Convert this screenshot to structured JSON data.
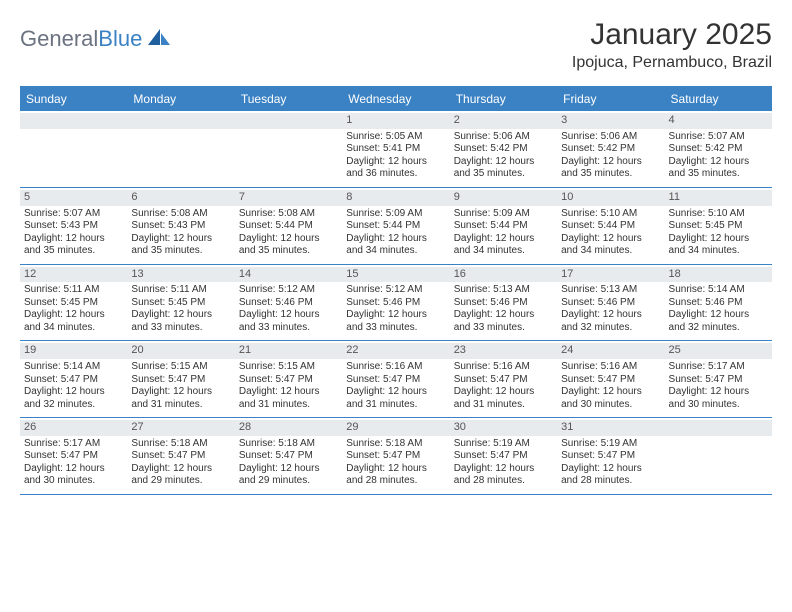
{
  "brand": {
    "general": "General",
    "blue": "Blue"
  },
  "title": "January 2025",
  "location": "Ipojuca, Pernambuco, Brazil",
  "colors": {
    "accent": "#3b82c4",
    "header_bg": "#3b82c4",
    "header_text": "#ffffff",
    "daynum_bg": "#e8ebed",
    "text": "#333333"
  },
  "day_headers": [
    "Sunday",
    "Monday",
    "Tuesday",
    "Wednesday",
    "Thursday",
    "Friday",
    "Saturday"
  ],
  "weeks": [
    [
      {
        "n": "",
        "sr": "",
        "ss": "",
        "dl": ""
      },
      {
        "n": "",
        "sr": "",
        "ss": "",
        "dl": ""
      },
      {
        "n": "",
        "sr": "",
        "ss": "",
        "dl": ""
      },
      {
        "n": "1",
        "sr": "Sunrise: 5:05 AM",
        "ss": "Sunset: 5:41 PM",
        "dl": "Daylight: 12 hours and 36 minutes."
      },
      {
        "n": "2",
        "sr": "Sunrise: 5:06 AM",
        "ss": "Sunset: 5:42 PM",
        "dl": "Daylight: 12 hours and 35 minutes."
      },
      {
        "n": "3",
        "sr": "Sunrise: 5:06 AM",
        "ss": "Sunset: 5:42 PM",
        "dl": "Daylight: 12 hours and 35 minutes."
      },
      {
        "n": "4",
        "sr": "Sunrise: 5:07 AM",
        "ss": "Sunset: 5:42 PM",
        "dl": "Daylight: 12 hours and 35 minutes."
      }
    ],
    [
      {
        "n": "5",
        "sr": "Sunrise: 5:07 AM",
        "ss": "Sunset: 5:43 PM",
        "dl": "Daylight: 12 hours and 35 minutes."
      },
      {
        "n": "6",
        "sr": "Sunrise: 5:08 AM",
        "ss": "Sunset: 5:43 PM",
        "dl": "Daylight: 12 hours and 35 minutes."
      },
      {
        "n": "7",
        "sr": "Sunrise: 5:08 AM",
        "ss": "Sunset: 5:44 PM",
        "dl": "Daylight: 12 hours and 35 minutes."
      },
      {
        "n": "8",
        "sr": "Sunrise: 5:09 AM",
        "ss": "Sunset: 5:44 PM",
        "dl": "Daylight: 12 hours and 34 minutes."
      },
      {
        "n": "9",
        "sr": "Sunrise: 5:09 AM",
        "ss": "Sunset: 5:44 PM",
        "dl": "Daylight: 12 hours and 34 minutes."
      },
      {
        "n": "10",
        "sr": "Sunrise: 5:10 AM",
        "ss": "Sunset: 5:44 PM",
        "dl": "Daylight: 12 hours and 34 minutes."
      },
      {
        "n": "11",
        "sr": "Sunrise: 5:10 AM",
        "ss": "Sunset: 5:45 PM",
        "dl": "Daylight: 12 hours and 34 minutes."
      }
    ],
    [
      {
        "n": "12",
        "sr": "Sunrise: 5:11 AM",
        "ss": "Sunset: 5:45 PM",
        "dl": "Daylight: 12 hours and 34 minutes."
      },
      {
        "n": "13",
        "sr": "Sunrise: 5:11 AM",
        "ss": "Sunset: 5:45 PM",
        "dl": "Daylight: 12 hours and 33 minutes."
      },
      {
        "n": "14",
        "sr": "Sunrise: 5:12 AM",
        "ss": "Sunset: 5:46 PM",
        "dl": "Daylight: 12 hours and 33 minutes."
      },
      {
        "n": "15",
        "sr": "Sunrise: 5:12 AM",
        "ss": "Sunset: 5:46 PM",
        "dl": "Daylight: 12 hours and 33 minutes."
      },
      {
        "n": "16",
        "sr": "Sunrise: 5:13 AM",
        "ss": "Sunset: 5:46 PM",
        "dl": "Daylight: 12 hours and 33 minutes."
      },
      {
        "n": "17",
        "sr": "Sunrise: 5:13 AM",
        "ss": "Sunset: 5:46 PM",
        "dl": "Daylight: 12 hours and 32 minutes."
      },
      {
        "n": "18",
        "sr": "Sunrise: 5:14 AM",
        "ss": "Sunset: 5:46 PM",
        "dl": "Daylight: 12 hours and 32 minutes."
      }
    ],
    [
      {
        "n": "19",
        "sr": "Sunrise: 5:14 AM",
        "ss": "Sunset: 5:47 PM",
        "dl": "Daylight: 12 hours and 32 minutes."
      },
      {
        "n": "20",
        "sr": "Sunrise: 5:15 AM",
        "ss": "Sunset: 5:47 PM",
        "dl": "Daylight: 12 hours and 31 minutes."
      },
      {
        "n": "21",
        "sr": "Sunrise: 5:15 AM",
        "ss": "Sunset: 5:47 PM",
        "dl": "Daylight: 12 hours and 31 minutes."
      },
      {
        "n": "22",
        "sr": "Sunrise: 5:16 AM",
        "ss": "Sunset: 5:47 PM",
        "dl": "Daylight: 12 hours and 31 minutes."
      },
      {
        "n": "23",
        "sr": "Sunrise: 5:16 AM",
        "ss": "Sunset: 5:47 PM",
        "dl": "Daylight: 12 hours and 31 minutes."
      },
      {
        "n": "24",
        "sr": "Sunrise: 5:16 AM",
        "ss": "Sunset: 5:47 PM",
        "dl": "Daylight: 12 hours and 30 minutes."
      },
      {
        "n": "25",
        "sr": "Sunrise: 5:17 AM",
        "ss": "Sunset: 5:47 PM",
        "dl": "Daylight: 12 hours and 30 minutes."
      }
    ],
    [
      {
        "n": "26",
        "sr": "Sunrise: 5:17 AM",
        "ss": "Sunset: 5:47 PM",
        "dl": "Daylight: 12 hours and 30 minutes."
      },
      {
        "n": "27",
        "sr": "Sunrise: 5:18 AM",
        "ss": "Sunset: 5:47 PM",
        "dl": "Daylight: 12 hours and 29 minutes."
      },
      {
        "n": "28",
        "sr": "Sunrise: 5:18 AM",
        "ss": "Sunset: 5:47 PM",
        "dl": "Daylight: 12 hours and 29 minutes."
      },
      {
        "n": "29",
        "sr": "Sunrise: 5:18 AM",
        "ss": "Sunset: 5:47 PM",
        "dl": "Daylight: 12 hours and 28 minutes."
      },
      {
        "n": "30",
        "sr": "Sunrise: 5:19 AM",
        "ss": "Sunset: 5:47 PM",
        "dl": "Daylight: 12 hours and 28 minutes."
      },
      {
        "n": "31",
        "sr": "Sunrise: 5:19 AM",
        "ss": "Sunset: 5:47 PM",
        "dl": "Daylight: 12 hours and 28 minutes."
      },
      {
        "n": "",
        "sr": "",
        "ss": "",
        "dl": ""
      }
    ]
  ]
}
